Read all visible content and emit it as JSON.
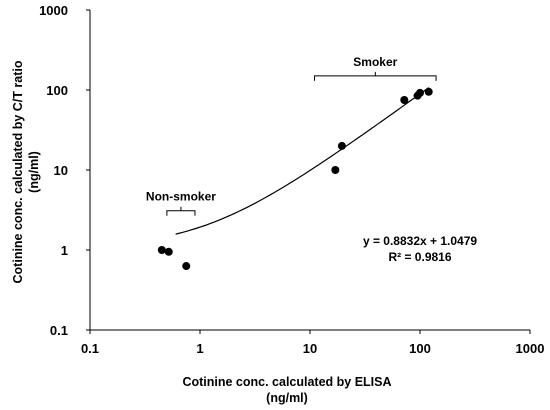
{
  "chart_data": {
    "type": "scatter",
    "xscale": "log",
    "yscale": "log",
    "xlim": [
      0.1,
      1000
    ],
    "ylim": [
      0.1,
      1000
    ],
    "xticks": [
      "0.1",
      "1",
      "10",
      "100",
      "1000"
    ],
    "yticks": [
      "0.1",
      "1",
      "10",
      "100",
      "1000"
    ],
    "xlabel_line1": "Cotinine conc. calculated by ELISA",
    "xlabel_line2": "(ng/ml)",
    "ylabel_line1": "Cotinine conc. calculated by C/T ratio",
    "ylabel_line2": "(ng/ml)",
    "grid": false,
    "points": [
      {
        "x": 0.45,
        "y": 1.0
      },
      {
        "x": 0.52,
        "y": 0.95
      },
      {
        "x": 0.75,
        "y": 0.63
      },
      {
        "x": 17,
        "y": 10
      },
      {
        "x": 19.5,
        "y": 20
      },
      {
        "x": 72,
        "y": 75
      },
      {
        "x": 95,
        "y": 85
      },
      {
        "x": 100,
        "y": 92
      },
      {
        "x": 120,
        "y": 95
      }
    ],
    "trendline": {
      "equation": "y = 0.8832x + 1.0479",
      "r2": "R² = 0.9816",
      "x_range": [
        0.6,
        120
      ]
    },
    "annotations": [
      {
        "label": "Non-smoker",
        "x_from": 0.5,
        "x_to": 0.9,
        "y": 3.1
      },
      {
        "label": "Smoker",
        "x_from": 11,
        "x_to": 140,
        "y": 150
      }
    ]
  }
}
